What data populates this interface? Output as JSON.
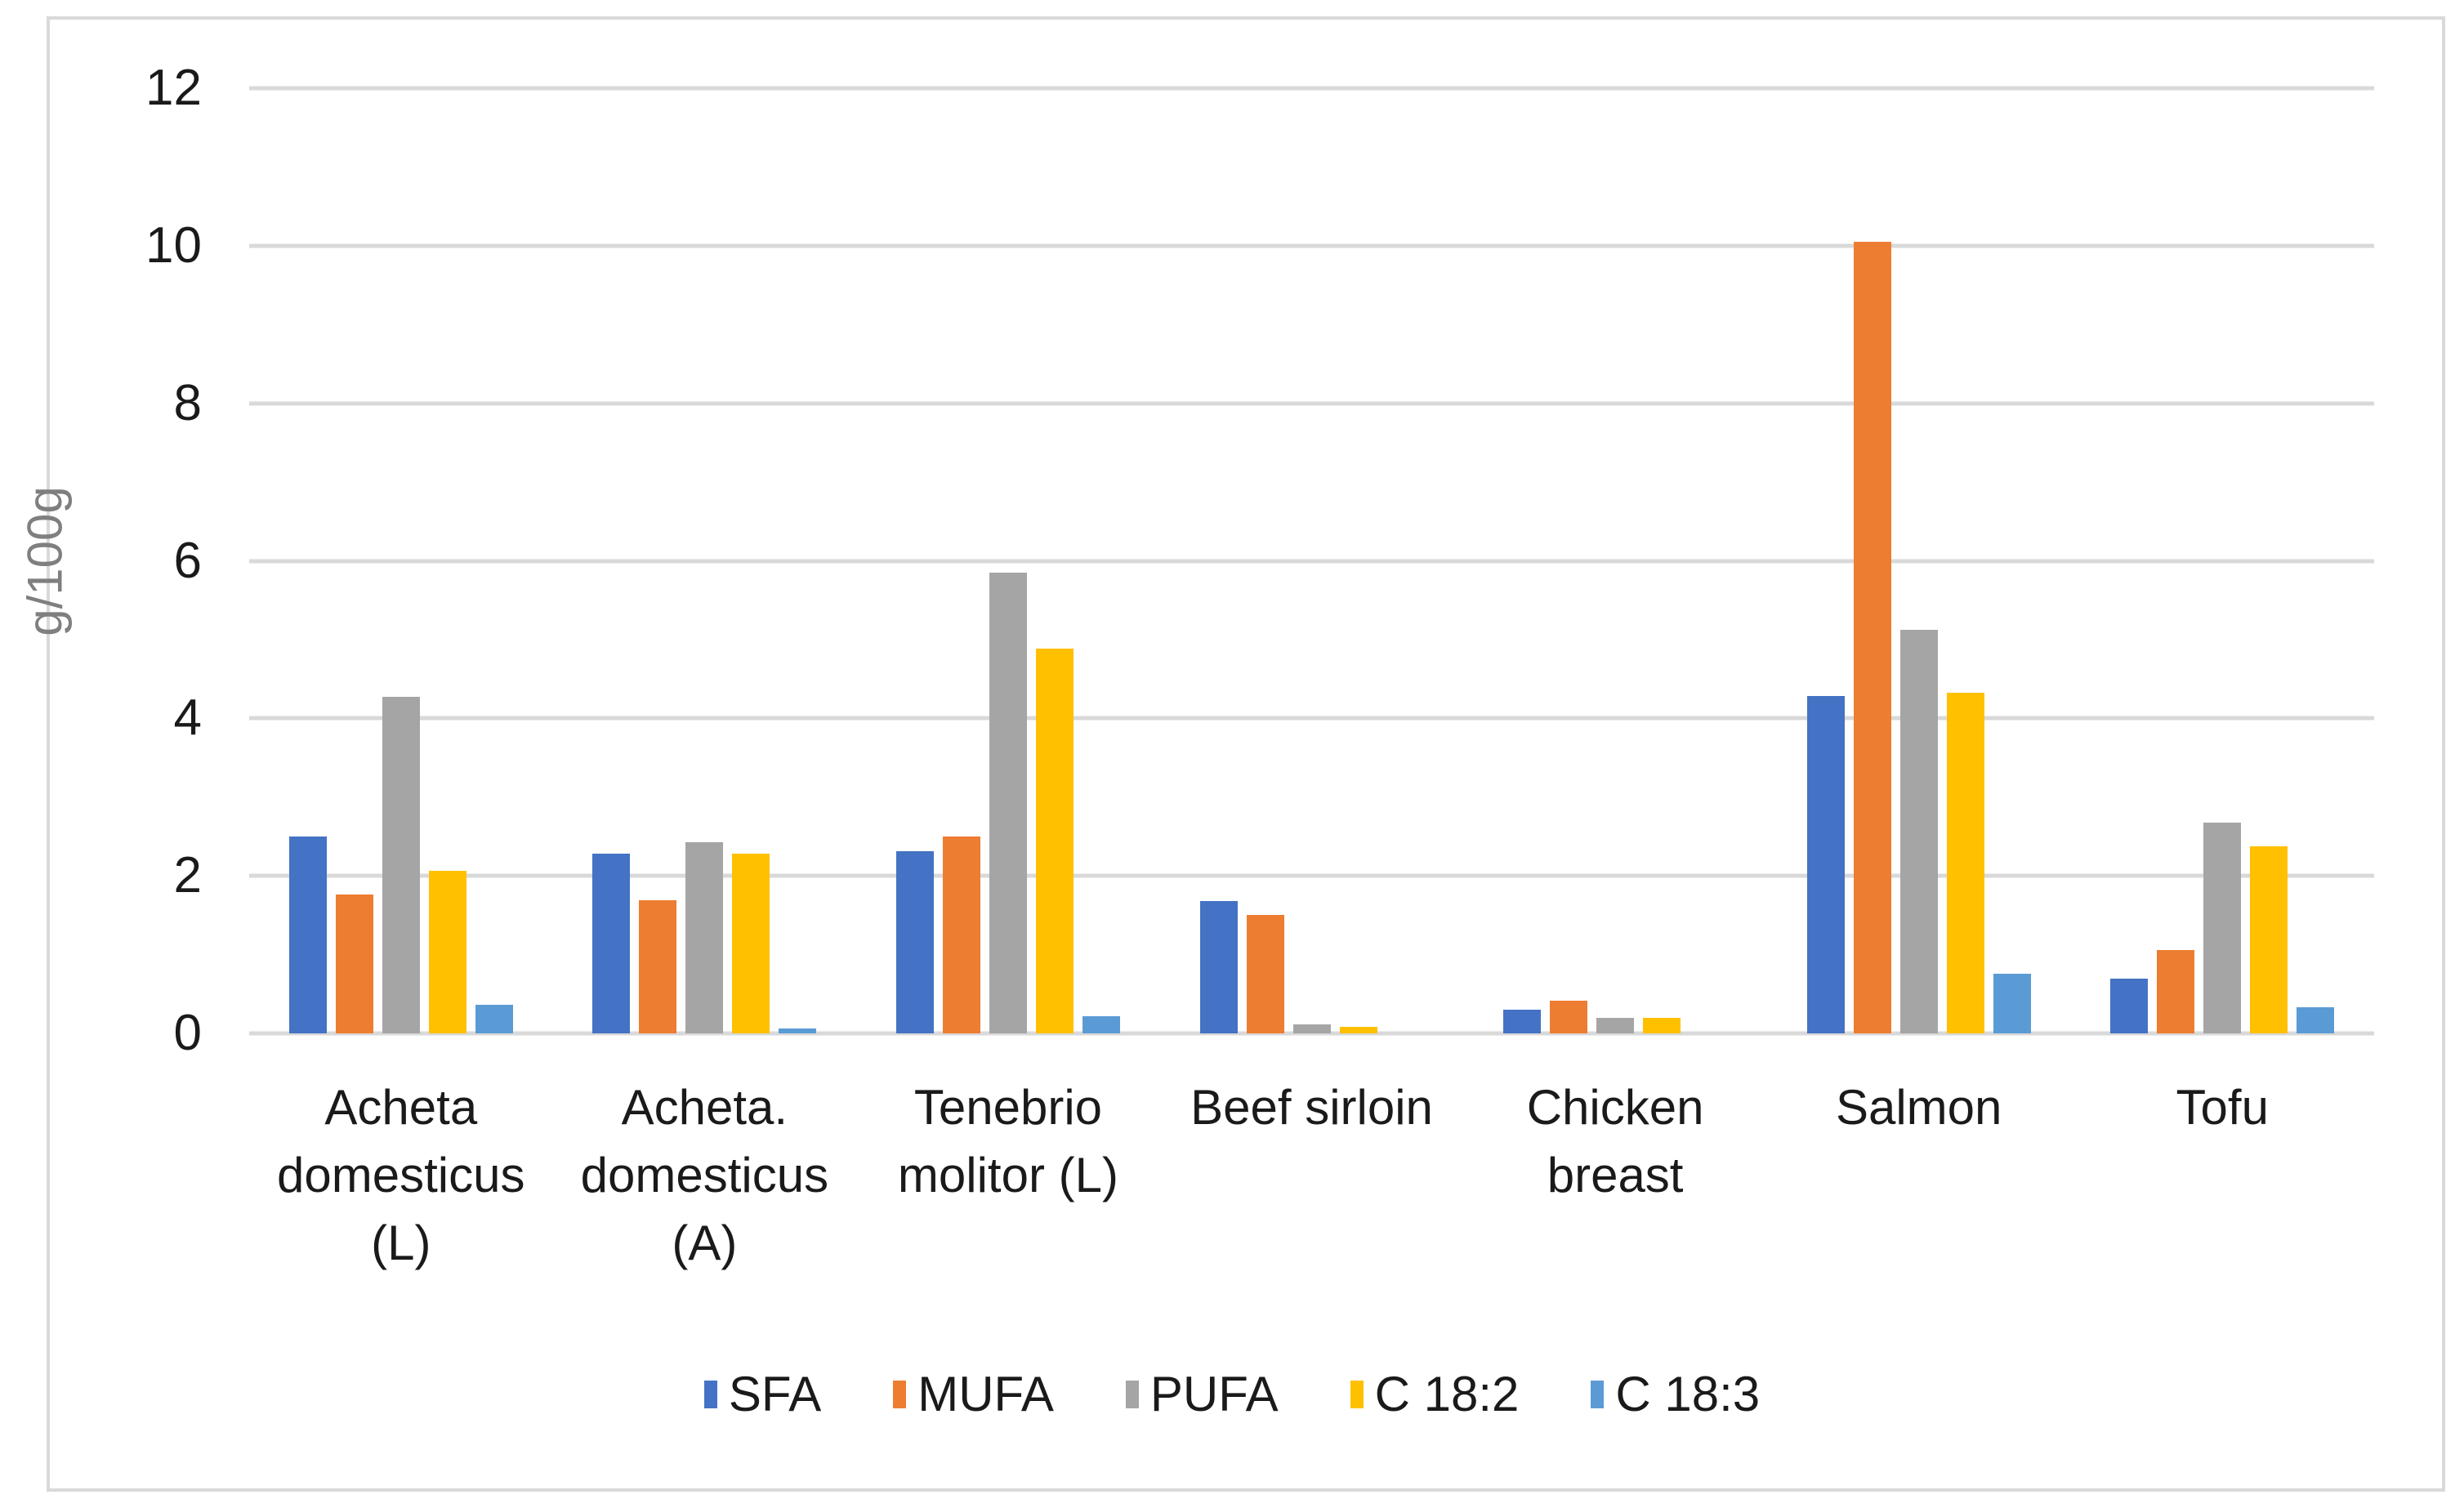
{
  "chart_data": {
    "type": "bar",
    "title": "",
    "ylabel": "g/100g",
    "xlabel": "",
    "ylim": [
      0,
      12
    ],
    "yticks": [
      0,
      2,
      4,
      6,
      8,
      10,
      12
    ],
    "grid": true,
    "legend_position": "bottom",
    "categories": [
      "Acheta domesticus (L)",
      "Acheta. domesticus (A)",
      "Tenebrio molitor (L)",
      "Beef sirloin",
      "Chicken breast",
      "Salmon",
      "Tofu"
    ],
    "series": [
      {
        "name": "SFA",
        "color": "#4472C4",
        "values": [
          2.5,
          2.28,
          2.31,
          1.68,
          0.3,
          4.28,
          0.7
        ]
      },
      {
        "name": "MUFA",
        "color": "#ED7D31",
        "values": [
          1.76,
          1.69,
          2.5,
          1.5,
          0.41,
          10.05,
          1.06
        ]
      },
      {
        "name": "PUFA",
        "color": "#A5A5A5",
        "values": [
          4.27,
          2.43,
          5.85,
          0.11,
          0.2,
          5.12,
          2.68
        ]
      },
      {
        "name": "C 18:2",
        "color": "#FFC000",
        "values": [
          2.06,
          2.28,
          4.89,
          0.08,
          0.2,
          4.32,
          2.38
        ]
      },
      {
        "name": "C 18:3",
        "color": "#5B9BD5",
        "values": [
          0.36,
          0.06,
          0.22,
          0.0,
          0.0,
          0.76,
          0.33
        ]
      }
    ]
  },
  "colors": {
    "gridline": "#D9D9D9",
    "frame_border": "#D9D9D9",
    "tick_label": "#1a1a1a",
    "axis_title": "#7F7F7F",
    "background": "#FFFFFF"
  }
}
